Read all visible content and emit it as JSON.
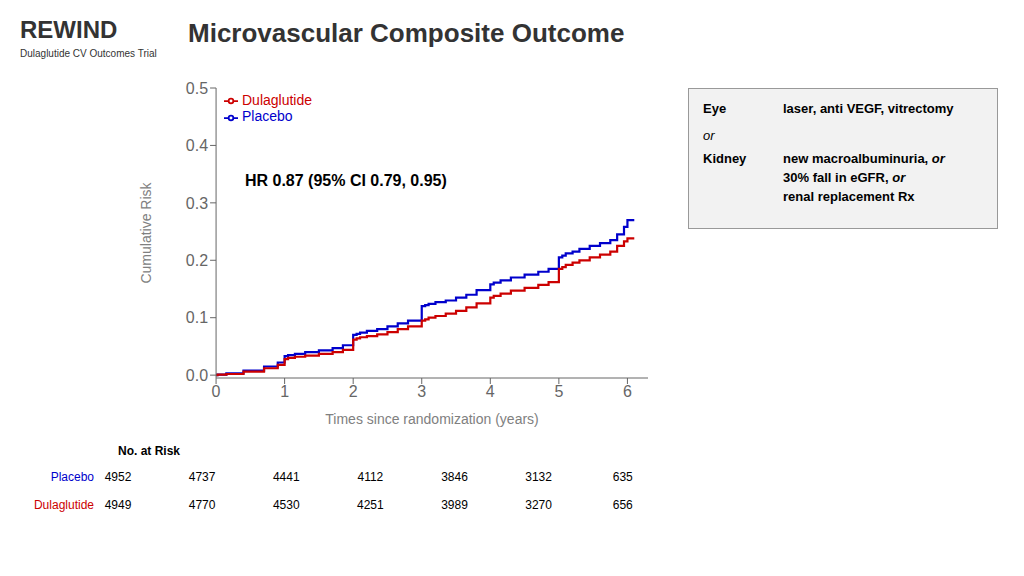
{
  "chart_data": {
    "type": "step",
    "title": "Microvascular Composite Outcome",
    "subtitle": "REWIND",
    "annotations": [
      "Dulaglutide CV Outcomes Trial",
      "HR 0.87 (95% CI 0.79, 0.95)"
    ],
    "xlabel": "Times since randomization (years)",
    "ylabel": "Cumulative Risk",
    "xlim": [
      0,
      6.3
    ],
    "ylim": [
      -0.005,
      0.5
    ],
    "xticks": [
      0,
      1,
      2,
      3,
      4,
      5,
      6
    ],
    "yticks": [
      {
        "value": 0,
        "label": "0.0"
      },
      0.1,
      0.2,
      0.3,
      0.4,
      0.5
    ],
    "legend": "upper left",
    "x": [
      0,
      0.02,
      0.15,
      0.4,
      0.7,
      0.9,
      1.0,
      1.05,
      1.15,
      1.3,
      1.5,
      1.7,
      1.85,
      2.0,
      2.05,
      2.1,
      2.2,
      2.35,
      2.5,
      2.65,
      2.8,
      3.0,
      3.05,
      3.1,
      3.2,
      3.35,
      3.5,
      3.65,
      3.8,
      4.0,
      4.05,
      4.15,
      4.3,
      4.5,
      4.7,
      4.85,
      5.0,
      5.05,
      5.1,
      5.2,
      5.3,
      5.45,
      5.6,
      5.75,
      5.85,
      5.95,
      6.0,
      6.1
    ],
    "series": [
      {
        "name": "Placebo",
        "color": "#0000CC",
        "values": [
          0,
          0.001,
          0.003,
          0.008,
          0.015,
          0.022,
          0.033,
          0.035,
          0.037,
          0.04,
          0.043,
          0.047,
          0.052,
          0.07,
          0.072,
          0.074,
          0.077,
          0.08,
          0.085,
          0.09,
          0.095,
          0.12,
          0.122,
          0.124,
          0.127,
          0.13,
          0.135,
          0.14,
          0.148,
          0.158,
          0.161,
          0.165,
          0.17,
          0.175,
          0.18,
          0.185,
          0.205,
          0.208,
          0.212,
          0.215,
          0.22,
          0.225,
          0.23,
          0.235,
          0.245,
          0.258,
          0.27,
          0.27
        ]
      },
      {
        "name": "Dulaglutide",
        "color": "#CC0000",
        "values": [
          0,
          0.001,
          0.002,
          0.006,
          0.012,
          0.018,
          0.028,
          0.03,
          0.032,
          0.034,
          0.037,
          0.04,
          0.044,
          0.062,
          0.064,
          0.066,
          0.068,
          0.071,
          0.075,
          0.08,
          0.085,
          0.095,
          0.097,
          0.1,
          0.103,
          0.107,
          0.112,
          0.118,
          0.125,
          0.135,
          0.138,
          0.142,
          0.147,
          0.152,
          0.157,
          0.162,
          0.185,
          0.188,
          0.192,
          0.196,
          0.2,
          0.205,
          0.21,
          0.215,
          0.225,
          0.233,
          0.238,
          0.238
        ]
      }
    ],
    "info_box": [
      [
        "Eye",
        "laser, anti VEGF, vitrectomy"
      ],
      [
        "or"
      ],
      [
        "Kidney",
        "new macroalbuminuria, or",
        "30% fall in eGFR, or",
        "renal replacement Rx"
      ]
    ],
    "at_risk": {
      "label": "No. at Risk",
      "x": [
        0,
        1,
        2,
        3,
        4,
        5,
        6
      ],
      "rows": [
        {
          "name": "Placebo",
          "values": [
            4952,
            4737,
            4441,
            4112,
            3846,
            3132,
            635
          ]
        },
        {
          "name": "Dulaglutide",
          "values": [
            4949,
            4770,
            4530,
            4251,
            3989,
            3270,
            656
          ]
        }
      ]
    }
  }
}
